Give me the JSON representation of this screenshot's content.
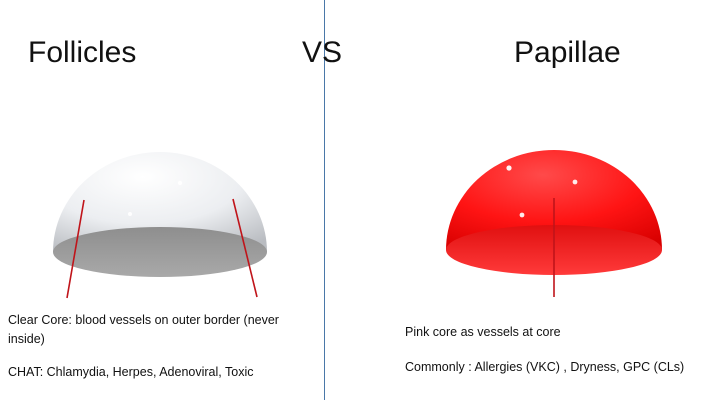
{
  "titles": {
    "left": "Follicles",
    "center": "VS",
    "right": "Papillae"
  },
  "left_notes": {
    "core": "Clear Core: blood vessels on outer border (never inside)",
    "causes": "CHAT: Chlamydia, Herpes, Adenoviral, Toxic"
  },
  "right_notes": {
    "core": "Pink core as vessels at core",
    "causes": "Commonly : Allergies (VKC) , Dryness, GPC (CLs)"
  },
  "colors": {
    "divider": "#4a78a8",
    "follicle_dome": "#e9ebee",
    "papilla_dome": "#ff1a1a",
    "vessel_line": "#c0141a"
  }
}
